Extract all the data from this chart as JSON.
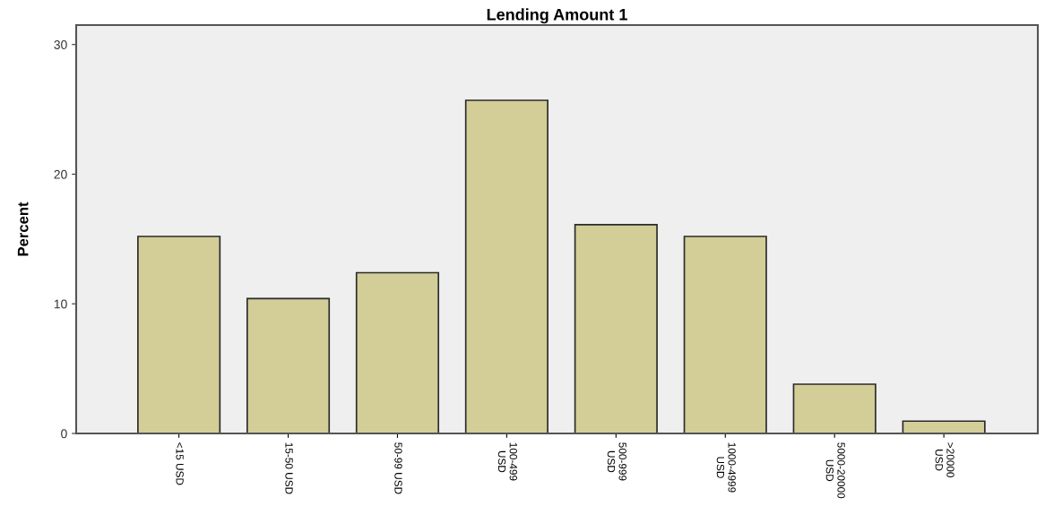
{
  "chart_data": {
    "type": "bar",
    "title": "Lending Amount 1",
    "ylabel": "Percent",
    "categories": [
      "<15 USD",
      "15-50 USD",
      "50-99 USD",
      "100-499\nUSD",
      "500-999\nUSD",
      "1000-4999\nUSD",
      "5000-20000\nUSD",
      ">20000\nUSD"
    ],
    "values": [
      15.2,
      10.4,
      12.4,
      25.7,
      16.1,
      15.2,
      3.8,
      0.95
    ],
    "color": "#d3ce97",
    "ylim": [
      0,
      31.5
    ],
    "yticks": [
      0,
      10,
      20,
      30
    ],
    "grid": false
  }
}
